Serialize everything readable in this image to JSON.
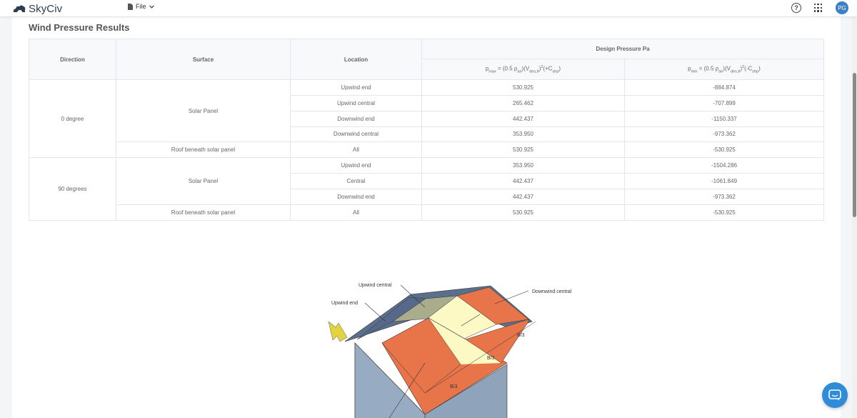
{
  "app": {
    "logo_text": "SkyCiv"
  },
  "menu": {
    "file_label": "File"
  },
  "user": {
    "initials": "PG"
  },
  "icons": {
    "logo": "skyciv-cloud-logo",
    "file": "file-icon",
    "chevron": "chevron-down-icon",
    "help": "help-circle-icon",
    "apps": "app-grid-icon",
    "chat": "chat-bubble-icon"
  },
  "colors": {
    "accent": "#2f8cd9",
    "avatar": "#3b7fc4",
    "roof_end": "#e8744a",
    "roof_central": "#fdf9c4",
    "wall": "#93a9c0"
  },
  "section": {
    "title": "Wind Pressure Results"
  },
  "table": {
    "headers": {
      "direction": "Direction",
      "surface": "Surface",
      "location": "Location",
      "design_pressure": "Design Pressure Pa"
    },
    "rows": [
      {
        "location": "Upwind end",
        "pmax": "530.925",
        "pmin": "-884.874"
      },
      {
        "location": "Upwind central",
        "pmax": "265.462",
        "pmin": "-707.899"
      },
      {
        "location": "Downwind end",
        "pmax": "442.437",
        "pmin": "-1150.337"
      },
      {
        "location": "Downwind central",
        "pmax": "353.950",
        "pmin": "-973.362"
      },
      {
        "location": "All",
        "pmax": "530.925",
        "pmin": "-530.925"
      },
      {
        "location": "Upwind end",
        "pmax": "353.950",
        "pmin": "-1504.286"
      },
      {
        "location": "Central",
        "pmax": "442.437",
        "pmin": "-1061.849"
      },
      {
        "location": "Downwind end",
        "pmax": "442.437",
        "pmin": "-973.362"
      },
      {
        "location": "All",
        "pmax": "530.925",
        "pmin": "-530.925"
      }
    ],
    "groups": {
      "dir_0": "0 degree",
      "dir_90": "90 degrees",
      "solar_panel_0": "Solar Panel",
      "roof_0": "Roof beneath solar panel",
      "solar_panel_90": "Solar Panel",
      "roof_90": "Roof beneath solar panel"
    }
  },
  "diagram": {
    "labels": {
      "upwind_central": "Upwind central",
      "upwind_end": "Upwind end",
      "downwind_central": "Downwind central",
      "b3_a": "B/3",
      "b3_b": "B/3",
      "b3_c": "B/3"
    }
  }
}
